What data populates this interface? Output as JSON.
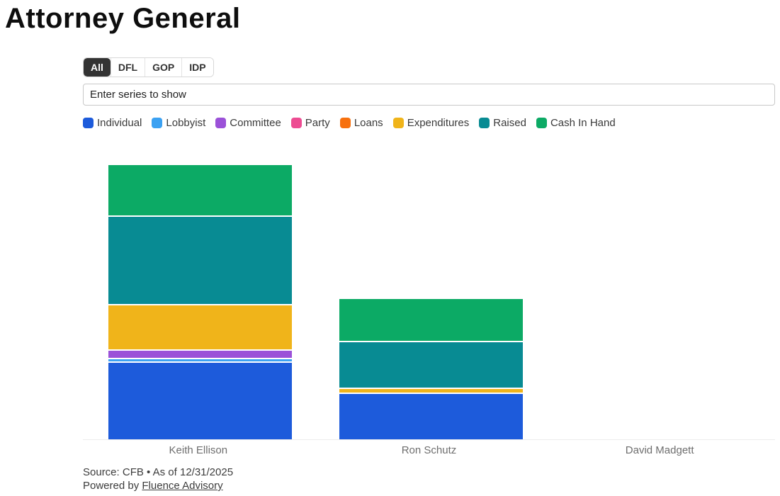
{
  "page": {
    "title": "Attorney General"
  },
  "filters": {
    "options": [
      {
        "label": "All",
        "active": true
      },
      {
        "label": "DFL",
        "active": false
      },
      {
        "label": "GOP",
        "active": false
      },
      {
        "label": "IDP",
        "active": false
      }
    ]
  },
  "search": {
    "placeholder": "Enter series to show"
  },
  "chart_data": {
    "type": "bar",
    "stacked": true,
    "orientation": "vertical",
    "title": "",
    "xlabel": "",
    "ylabel": "",
    "y_axis_visible": false,
    "legend_position": "top",
    "grid": false,
    "value_unit": "relative-height-px",
    "categories": [
      "Keith Ellison",
      "Ron Schutz",
      "David Madgett"
    ],
    "series": [
      {
        "name": "Individual",
        "color": "#1d5bdb",
        "values": [
          108,
          64,
          0
        ]
      },
      {
        "name": "Lobbyist",
        "color": "#3ba1f2",
        "values": [
          3,
          0,
          0
        ]
      },
      {
        "name": "Committee",
        "color": "#9b51d8",
        "values": [
          10,
          0,
          0
        ]
      },
      {
        "name": "Party",
        "color": "#ed4c92",
        "values": [
          0,
          0,
          0
        ]
      },
      {
        "name": "Loans",
        "color": "#f7700e",
        "values": [
          0,
          0,
          0
        ]
      },
      {
        "name": "Expenditures",
        "color": "#f0b41a",
        "values": [
          62,
          5,
          0
        ]
      },
      {
        "name": "Raised",
        "color": "#088b93",
        "values": [
          123,
          64,
          0
        ]
      },
      {
        "name": "Cash In Hand",
        "color": "#0caa65",
        "values": [
          71,
          59,
          0
        ]
      }
    ]
  },
  "footer": {
    "source": "Source: CFB • As of 12/31/2025",
    "powered_by_prefix": "Powered by ",
    "powered_by_link": "Fluence Advisory"
  }
}
